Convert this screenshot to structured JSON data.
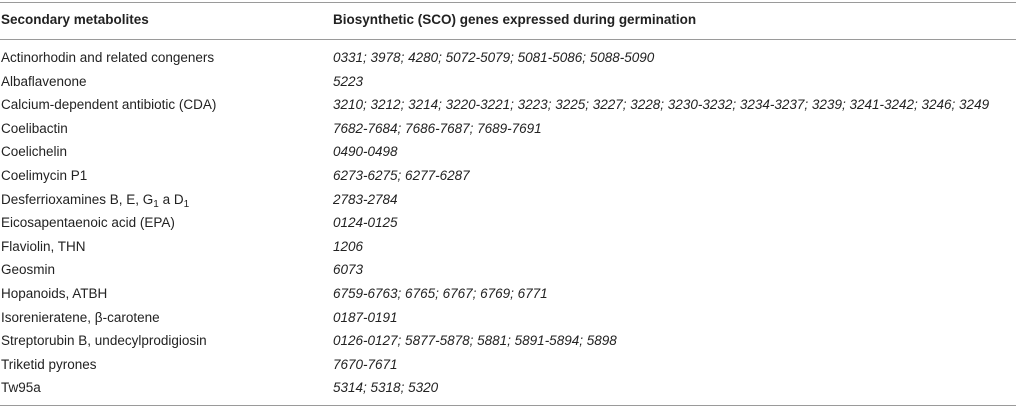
{
  "table": {
    "header": {
      "col1": "Secondary metabolites",
      "col2": "Biosynthetic (SCO) genes expressed during germination"
    },
    "rows": [
      {
        "metabolite": "Actinorhodin and related congeners",
        "genes": "0331; 3978; 4280; 5072-5079; 5081-5086; 5088-5090"
      },
      {
        "metabolite": "Albaflavenone",
        "genes": "5223"
      },
      {
        "metabolite": "Calcium-dependent antibiotic (CDA)",
        "genes": "3210; 3212; 3214; 3220-3221; 3223; 3225; 3227; 3228; 3230-3232; 3234-3237; 3239; 3241-3242; 3246; 3249"
      },
      {
        "metabolite": "Coelibactin",
        "genes": "7682-7684; 7686-7687; 7689-7691"
      },
      {
        "metabolite": "Coelichelin",
        "genes": "0490-0498"
      },
      {
        "metabolite": "Coelimycin P1",
        "genes": "6273-6275; 6277-6287"
      },
      {
        "metabolite_prefix": "Desferrioxamines B, E, G",
        "metabolite_sub1": "1",
        "metabolite_mid": " a D",
        "metabolite_sub2": "1",
        "genes": "2783-2784"
      },
      {
        "metabolite": "Eicosapentaenoic acid (EPA)",
        "genes": "0124-0125"
      },
      {
        "metabolite": "Flaviolin, THN",
        "genes": "1206"
      },
      {
        "metabolite": "Geosmin",
        "genes": "6073"
      },
      {
        "metabolite": "Hopanoids, ATBH",
        "genes": "6759-6763; 6765; 6767; 6769; 6771"
      },
      {
        "metabolite": "Isorenieratene, β-carotene",
        "genes": "0187-0191"
      },
      {
        "metabolite": "Streptorubin B, undecylprodigiosin",
        "genes": "0126-0127; 5877-5878; 5881; 5891-5894; 5898"
      },
      {
        "metabolite": "Triketid pyrones",
        "genes": "7670-7671"
      },
      {
        "metabolite": "Tw95a",
        "genes": "5314; 5318; 5320"
      }
    ]
  }
}
